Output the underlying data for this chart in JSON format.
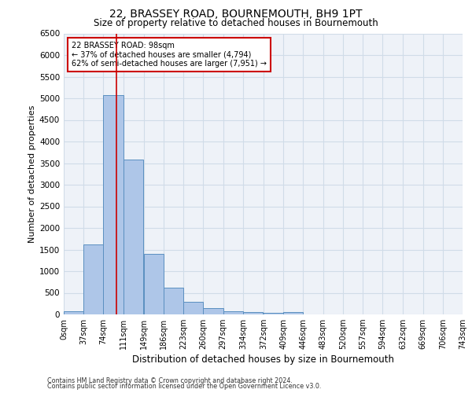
{
  "title_line1": "22, BRASSEY ROAD, BOURNEMOUTH, BH9 1PT",
  "title_line2": "Size of property relative to detached houses in Bournemouth",
  "xlabel": "Distribution of detached houses by size in Bournemouth",
  "ylabel": "Number of detached properties",
  "property_label": "22 BRASSEY ROAD: 98sqm",
  "annotation_line2": "← 37% of detached houses are smaller (4,794)",
  "annotation_line3": "62% of semi-detached houses are larger (7,951) →",
  "footer_line1": "Contains HM Land Registry data © Crown copyright and database right 2024.",
  "footer_line2": "Contains public sector information licensed under the Open Government Licence v3.0.",
  "bin_edges": [
    0,
    37,
    74,
    111,
    149,
    186,
    223,
    260,
    297,
    334,
    372,
    409,
    446,
    483,
    520,
    557,
    594,
    632,
    669,
    706,
    743
  ],
  "bin_labels": [
    "0sqm",
    "37sqm",
    "74sqm",
    "111sqm",
    "149sqm",
    "186sqm",
    "223sqm",
    "260sqm",
    "297sqm",
    "334sqm",
    "372sqm",
    "409sqm",
    "446sqm",
    "483sqm",
    "520sqm",
    "557sqm",
    "594sqm",
    "632sqm",
    "669sqm",
    "706sqm",
    "743sqm"
  ],
  "bar_heights": [
    75,
    1620,
    5080,
    3580,
    1400,
    620,
    300,
    140,
    80,
    50,
    30,
    50,
    0,
    0,
    0,
    0,
    0,
    0,
    0,
    0
  ],
  "bar_color": "#aec6e8",
  "bar_edge_color": "#5a8fc0",
  "vline_color": "#cc0000",
  "vline_x": 98,
  "annotation_box_color": "#cc0000",
  "grid_color": "#d0dce8",
  "background_color": "#eef2f8",
  "ylim": [
    0,
    6500
  ],
  "yticks": [
    0,
    500,
    1000,
    1500,
    2000,
    2500,
    3000,
    3500,
    4000,
    4500,
    5000,
    5500,
    6000,
    6500
  ]
}
